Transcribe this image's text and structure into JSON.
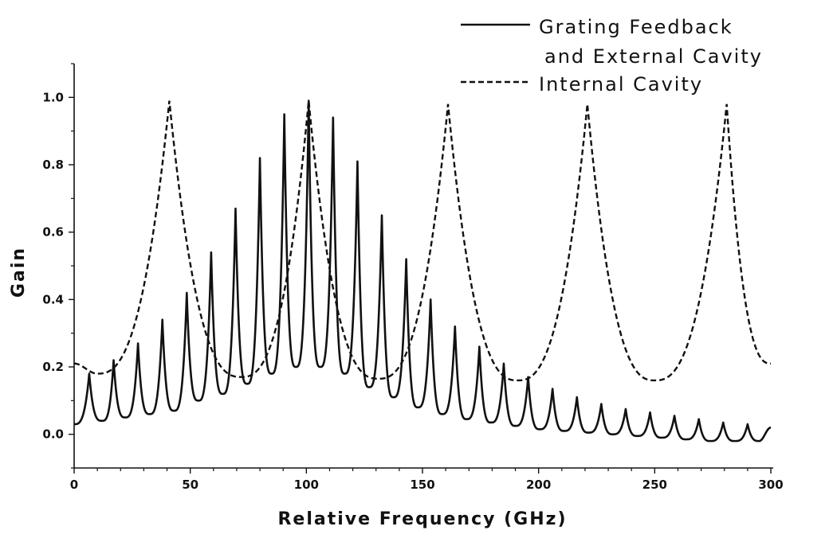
{
  "chart_data": {
    "type": "line",
    "title": "",
    "xlabel": "Relative Frequency (GHz)",
    "ylabel": "Gain",
    "xlim": [
      0,
      300
    ],
    "ylim": [
      -0.1,
      1.1
    ],
    "x_ticks": [
      0,
      50,
      100,
      150,
      200,
      250,
      300
    ],
    "x_tick_labels": [
      "0",
      "50",
      "100",
      "150",
      "200",
      "250",
      "300"
    ],
    "y_ticks": [
      0.0,
      0.2,
      0.4,
      0.6,
      0.8,
      1.0
    ],
    "y_tick_labels": [
      "0.0",
      "0.2",
      "0.4",
      "0.6",
      "0.8",
      "1.0"
    ],
    "grid": false,
    "legend_position": "top-right",
    "legend_entries": [
      "Grating Feedback",
      "and External Cavity",
      "Internal Cavity"
    ],
    "series": [
      {
        "name": "Grating Feedback and External Cavity",
        "style": "solid",
        "color": "#111111",
        "peaks": [
          {
            "x": 6.5,
            "y": 0.18
          },
          {
            "x": 17,
            "y": 0.22
          },
          {
            "x": 27.5,
            "y": 0.27
          },
          {
            "x": 38,
            "y": 0.34
          },
          {
            "x": 48.5,
            "y": 0.42
          },
          {
            "x": 59,
            "y": 0.54
          },
          {
            "x": 69.5,
            "y": 0.67
          },
          {
            "x": 80,
            "y": 0.82
          },
          {
            "x": 90.5,
            "y": 0.95
          },
          {
            "x": 101,
            "y": 0.99
          },
          {
            "x": 111.5,
            "y": 0.94
          },
          {
            "x": 122,
            "y": 0.81
          },
          {
            "x": 132.5,
            "y": 0.65
          },
          {
            "x": 143,
            "y": 0.52
          },
          {
            "x": 153.5,
            "y": 0.4
          },
          {
            "x": 164,
            "y": 0.32
          },
          {
            "x": 174.5,
            "y": 0.26
          },
          {
            "x": 185,
            "y": 0.21
          },
          {
            "x": 195.5,
            "y": 0.17
          },
          {
            "x": 206,
            "y": 0.135
          },
          {
            "x": 216.5,
            "y": 0.11
          },
          {
            "x": 227,
            "y": 0.09
          },
          {
            "x": 237.5,
            "y": 0.075
          },
          {
            "x": 248,
            "y": 0.065
          },
          {
            "x": 258.5,
            "y": 0.055
          },
          {
            "x": 269,
            "y": 0.045
          },
          {
            "x": 279.5,
            "y": 0.035
          },
          {
            "x": 290,
            "y": 0.03
          }
        ],
        "valleys": [
          {
            "x": 0,
            "y": 0.03
          },
          {
            "x": 12,
            "y": 0.04
          },
          {
            "x": 22,
            "y": 0.05
          },
          {
            "x": 32.5,
            "y": 0.06
          },
          {
            "x": 43,
            "y": 0.07
          },
          {
            "x": 53.5,
            "y": 0.1
          },
          {
            "x": 64,
            "y": 0.12
          },
          {
            "x": 74.5,
            "y": 0.15
          },
          {
            "x": 85,
            "y": 0.18
          },
          {
            "x": 95.5,
            "y": 0.2
          },
          {
            "x": 106,
            "y": 0.2
          },
          {
            "x": 116.5,
            "y": 0.18
          },
          {
            "x": 127,
            "y": 0.14
          },
          {
            "x": 137.5,
            "y": 0.11
          },
          {
            "x": 148,
            "y": 0.08
          },
          {
            "x": 158.5,
            "y": 0.06
          },
          {
            "x": 169,
            "y": 0.045
          },
          {
            "x": 179.5,
            "y": 0.035
          },
          {
            "x": 190,
            "y": 0.025
          },
          {
            "x": 200.5,
            "y": 0.015
          },
          {
            "x": 211,
            "y": 0.01
          },
          {
            "x": 221.5,
            "y": 0.005
          },
          {
            "x": 232,
            "y": 0.0
          },
          {
            "x": 242.5,
            "y": -0.005
          },
          {
            "x": 253,
            "y": -0.01
          },
          {
            "x": 263.5,
            "y": -0.015
          },
          {
            "x": 274,
            "y": -0.02
          },
          {
            "x": 284.5,
            "y": -0.02
          },
          {
            "x": 295,
            "y": -0.02
          },
          {
            "x": 300,
            "y": 0.02
          }
        ]
      },
      {
        "name": "Internal Cavity",
        "style": "dashed",
        "color": "#111111",
        "peaks": [
          {
            "x": 41,
            "y": 0.99
          },
          {
            "x": 101,
            "y": 0.99
          },
          {
            "x": 161,
            "y": 0.98
          },
          {
            "x": 221,
            "y": 0.98
          },
          {
            "x": 281,
            "y": 0.98
          }
        ],
        "valleys": [
          {
            "x": 10,
            "y": 0.18
          },
          {
            "x": 72,
            "y": 0.17
          },
          {
            "x": 131,
            "y": 0.165
          },
          {
            "x": 191,
            "y": 0.16
          },
          {
            "x": 250,
            "y": 0.16
          }
        ],
        "endpoints": [
          {
            "x": 0,
            "y": 0.21
          },
          {
            "x": 300,
            "y": 0.21
          }
        ]
      }
    ]
  }
}
